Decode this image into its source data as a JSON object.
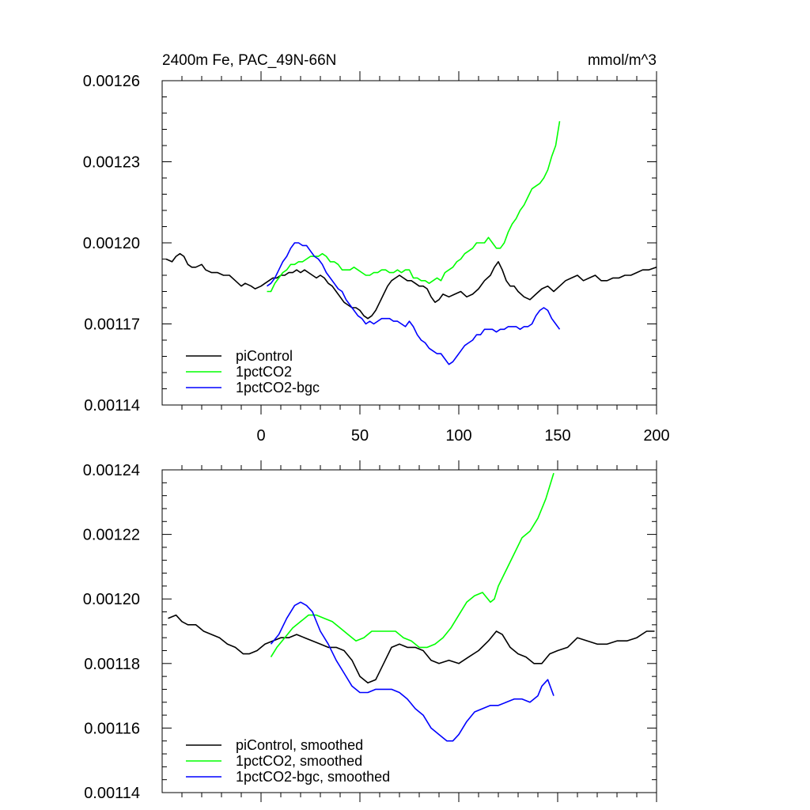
{
  "chart_data": [
    {
      "type": "line",
      "title": "2400m Fe, PAC_49N-66N",
      "units": "mmol/m^3",
      "xlim": [
        -50,
        200
      ],
      "ylim": [
        0.00114,
        0.00126
      ],
      "xticks": [
        0,
        50,
        100,
        150,
        200
      ],
      "xtick_labels": [
        "0",
        "50",
        "100",
        "150",
        "200"
      ],
      "yticks": [
        0.00114,
        0.00117,
        0.0012,
        0.00123,
        0.00126
      ],
      "ytick_labels": [
        "0.00114",
        "0.00117",
        "0.00120",
        "0.00123",
        "0.00126"
      ],
      "legend_position": "bottom-left",
      "series": [
        {
          "name": "piControl",
          "color": "#000000",
          "x": [
            -48,
            -45,
            -43,
            -41,
            -39,
            -37,
            -35,
            -33,
            -30,
            -28,
            -25,
            -22,
            -19,
            -16,
            -13,
            -10,
            -8,
            -5,
            -3,
            0,
            2,
            4,
            6,
            8,
            10,
            12,
            14,
            16,
            18,
            20,
            22,
            24,
            26,
            28,
            30,
            32,
            34,
            36,
            38,
            40,
            42,
            44,
            46,
            48,
            50,
            52,
            54,
            56,
            58,
            60,
            62,
            64,
            66,
            68,
            70,
            72,
            74,
            76,
            78,
            80,
            82,
            84,
            86,
            88,
            90,
            92,
            95,
            98,
            101,
            104,
            107,
            110,
            113,
            116,
            118,
            120,
            122,
            124,
            126,
            128,
            130,
            133,
            136,
            139,
            142,
            145,
            148,
            151,
            154,
            157,
            160,
            163,
            166,
            169,
            172,
            175,
            178,
            181,
            184,
            187,
            190,
            193,
            196,
            200
          ],
          "values": [
            0.001194,
            0.001193,
            0.001195,
            0.001196,
            0.001195,
            0.001192,
            0.001191,
            0.001191,
            0.001192,
            0.00119,
            0.001189,
            0.001189,
            0.001188,
            0.001188,
            0.001186,
            0.001184,
            0.001185,
            0.001184,
            0.001183,
            0.001184,
            0.001185,
            0.001186,
            0.001187,
            0.001187,
            0.001188,
            0.001188,
            0.001189,
            0.001189,
            0.00119,
            0.001189,
            0.00119,
            0.001189,
            0.001188,
            0.001187,
            0.001188,
            0.001187,
            0.001185,
            0.001184,
            0.001182,
            0.00118,
            0.001178,
            0.001177,
            0.001176,
            0.001176,
            0.001175,
            0.001173,
            0.001172,
            0.001173,
            0.001175,
            0.001178,
            0.001181,
            0.001184,
            0.001186,
            0.001187,
            0.001188,
            0.001187,
            0.001186,
            0.001186,
            0.001185,
            0.001184,
            0.001184,
            0.001183,
            0.00118,
            0.001178,
            0.001179,
            0.001181,
            0.00118,
            0.001181,
            0.001182,
            0.00118,
            0.001181,
            0.001183,
            0.001186,
            0.001188,
            0.001191,
            0.001193,
            0.00119,
            0.001186,
            0.001184,
            0.001184,
            0.001182,
            0.00118,
            0.001179,
            0.001181,
            0.001183,
            0.001184,
            0.001182,
            0.001184,
            0.001186,
            0.001187,
            0.001188,
            0.001186,
            0.001187,
            0.001188,
            0.001186,
            0.001186,
            0.001187,
            0.001187,
            0.001188,
            0.001188,
            0.001189,
            0.00119,
            0.00119,
            0.001191
          ]
        },
        {
          "name": "1pctCO2",
          "color": "#00ff00",
          "x": [
            3,
            5,
            7,
            9,
            11,
            13,
            15,
            17,
            19,
            21,
            23,
            25,
            27,
            29,
            31,
            33,
            35,
            37,
            39,
            41,
            43,
            45,
            47,
            49,
            51,
            53,
            55,
            57,
            59,
            61,
            63,
            65,
            67,
            69,
            71,
            73,
            75,
            77,
            79,
            81,
            83,
            85,
            87,
            89,
            91,
            93,
            95,
            97,
            99,
            101,
            103,
            105,
            107,
            109,
            111,
            113,
            115,
            117,
            119,
            121,
            123,
            125,
            127,
            129,
            131,
            133,
            135,
            137,
            139,
            141,
            143,
            145,
            147,
            149,
            151
          ],
          "values": [
            0.001182,
            0.001182,
            0.001185,
            0.001187,
            0.001189,
            0.00119,
            0.001192,
            0.001192,
            0.001193,
            0.001193,
            0.001194,
            0.001195,
            0.001195,
            0.001195,
            0.001196,
            0.001195,
            0.001193,
            0.001193,
            0.001192,
            0.00119,
            0.00119,
            0.00119,
            0.001191,
            0.00119,
            0.001189,
            0.001188,
            0.001188,
            0.001189,
            0.001189,
            0.00119,
            0.00119,
            0.001189,
            0.001189,
            0.00119,
            0.001189,
            0.00119,
            0.00119,
            0.001187,
            0.001187,
            0.001186,
            0.001186,
            0.001185,
            0.001186,
            0.001187,
            0.001186,
            0.001189,
            0.00119,
            0.001191,
            0.001193,
            0.001194,
            0.001196,
            0.001197,
            0.001198,
            0.0012,
            0.0012,
            0.0012,
            0.001202,
            0.0012,
            0.001198,
            0.001198,
            0.0012,
            0.001204,
            0.001207,
            0.001209,
            0.001212,
            0.001214,
            0.001217,
            0.00122,
            0.001221,
            0.001222,
            0.001224,
            0.001227,
            0.001232,
            0.001236,
            0.001245
          ]
        },
        {
          "name": "1pctCO2-bgc",
          "color": "#0000ff",
          "x": [
            3,
            5,
            7,
            9,
            11,
            13,
            15,
            17,
            19,
            21,
            23,
            25,
            27,
            29,
            31,
            33,
            35,
            37,
            39,
            41,
            43,
            45,
            47,
            49,
            51,
            53,
            55,
            57,
            59,
            61,
            63,
            65,
            67,
            69,
            71,
            73,
            75,
            77,
            79,
            81,
            83,
            85,
            87,
            89,
            91,
            93,
            95,
            97,
            99,
            101,
            103,
            105,
            107,
            109,
            111,
            113,
            115,
            117,
            119,
            121,
            123,
            125,
            127,
            129,
            131,
            133,
            135,
            137,
            139,
            141,
            143,
            145,
            147,
            149,
            151
          ],
          "values": [
            0.001184,
            0.001185,
            0.001187,
            0.00119,
            0.001193,
            0.001195,
            0.001198,
            0.0012,
            0.0012,
            0.001199,
            0.001199,
            0.001197,
            0.001195,
            0.001194,
            0.001192,
            0.001189,
            0.001187,
            0.001185,
            0.001183,
            0.001182,
            0.001179,
            0.001177,
            0.001175,
            0.001173,
            0.001172,
            0.00117,
            0.001171,
            0.00117,
            0.001171,
            0.001172,
            0.001172,
            0.001172,
            0.001171,
            0.001171,
            0.00117,
            0.001169,
            0.001171,
            0.001169,
            0.001166,
            0.001164,
            0.001163,
            0.001161,
            0.00116,
            0.001159,
            0.001159,
            0.001157,
            0.001155,
            0.001156,
            0.001158,
            0.00116,
            0.001162,
            0.001163,
            0.001164,
            0.001166,
            0.001166,
            0.001168,
            0.001168,
            0.001168,
            0.001167,
            0.001168,
            0.001168,
            0.001169,
            0.001169,
            0.001169,
            0.001168,
            0.001169,
            0.001169,
            0.00117,
            0.001173,
            0.001175,
            0.001176,
            0.001175,
            0.001172,
            0.00117,
            0.001168
          ]
        }
      ]
    },
    {
      "type": "line",
      "title": "",
      "xlim": [
        -50,
        200
      ],
      "ylim": [
        0.00114,
        0.00124
      ],
      "xticks": [
        0,
        50,
        100,
        150,
        200
      ],
      "yticks": [
        0.00114,
        0.00116,
        0.00118,
        0.0012,
        0.00122,
        0.00124
      ],
      "ytick_labels": [
        "0.00114",
        "0.00116",
        "0.00118",
        "0.00120",
        "0.00122",
        "0.00124"
      ],
      "legend_position": "bottom-left",
      "series": [
        {
          "name": "piControl, smoothed",
          "color": "#000000",
          "x": [
            -47,
            -43,
            -40,
            -37,
            -33,
            -29,
            -25,
            -21,
            -17,
            -13,
            -9,
            -6,
            -2,
            2,
            6,
            10,
            14,
            18,
            22,
            26,
            30,
            34,
            38,
            42,
            46,
            50,
            54,
            58,
            62,
            66,
            70,
            74,
            78,
            82,
            86,
            90,
            95,
            100,
            105,
            110,
            115,
            119,
            122,
            126,
            130,
            134,
            138,
            142,
            146,
            150,
            155,
            160,
            165,
            170,
            175,
            180,
            185,
            190,
            195,
            199
          ],
          "values": [
            0.001194,
            0.001195,
            0.001193,
            0.001192,
            0.001192,
            0.00119,
            0.001189,
            0.001188,
            0.001186,
            0.001185,
            0.001183,
            0.001183,
            0.001184,
            0.001186,
            0.001187,
            0.001188,
            0.001188,
            0.001189,
            0.001188,
            0.001187,
            0.001186,
            0.001185,
            0.001185,
            0.001184,
            0.001181,
            0.001176,
            0.001174,
            0.001175,
            0.00118,
            0.001185,
            0.001186,
            0.001185,
            0.001185,
            0.001184,
            0.001181,
            0.00118,
            0.001181,
            0.00118,
            0.001182,
            0.001184,
            0.001187,
            0.00119,
            0.001189,
            0.001185,
            0.001183,
            0.001182,
            0.00118,
            0.00118,
            0.001183,
            0.001184,
            0.001185,
            0.001188,
            0.001187,
            0.001186,
            0.001186,
            0.001187,
            0.001187,
            0.001188,
            0.00119,
            0.00119
          ]
        },
        {
          "name": "1pctCO2, smoothed",
          "color": "#00ff00",
          "x": [
            5,
            8,
            12,
            16,
            20,
            24,
            28,
            32,
            36,
            40,
            44,
            48,
            52,
            56,
            60,
            64,
            68,
            72,
            76,
            80,
            84,
            88,
            92,
            96,
            100,
            104,
            108,
            112,
            116,
            118,
            120,
            124,
            128,
            132,
            136,
            140,
            144,
            148
          ],
          "values": [
            0.001182,
            0.001185,
            0.001188,
            0.001191,
            0.001193,
            0.001195,
            0.001195,
            0.001194,
            0.001193,
            0.001191,
            0.001189,
            0.001187,
            0.001188,
            0.00119,
            0.00119,
            0.00119,
            0.00119,
            0.001188,
            0.001187,
            0.001185,
            0.001185,
            0.001186,
            0.001188,
            0.001191,
            0.001195,
            0.001199,
            0.001201,
            0.001202,
            0.001199,
            0.0012,
            0.001204,
            0.001209,
            0.001214,
            0.001219,
            0.001221,
            0.001225,
            0.001231,
            0.001239
          ]
        },
        {
          "name": "1pctCO2-bgc, smoothed",
          "color": "#0000ff",
          "x": [
            5,
            9,
            13,
            17,
            20,
            23,
            26,
            30,
            34,
            38,
            42,
            46,
            50,
            54,
            58,
            62,
            66,
            70,
            74,
            78,
            82,
            86,
            90,
            94,
            97,
            100,
            104,
            108,
            112,
            116,
            120,
            124,
            128,
            132,
            136,
            140,
            142,
            145,
            148
          ],
          "values": [
            0.001186,
            0.001189,
            0.001194,
            0.001198,
            0.001199,
            0.001198,
            0.001196,
            0.00119,
            0.001186,
            0.001181,
            0.001177,
            0.001173,
            0.001171,
            0.001171,
            0.001172,
            0.001172,
            0.001172,
            0.001171,
            0.001169,
            0.001166,
            0.001164,
            0.00116,
            0.001158,
            0.001156,
            0.001156,
            0.001158,
            0.001162,
            0.001165,
            0.001166,
            0.001167,
            0.001167,
            0.001168,
            0.001169,
            0.001169,
            0.001168,
            0.00117,
            0.001173,
            0.001175,
            0.00117
          ]
        }
      ]
    }
  ]
}
